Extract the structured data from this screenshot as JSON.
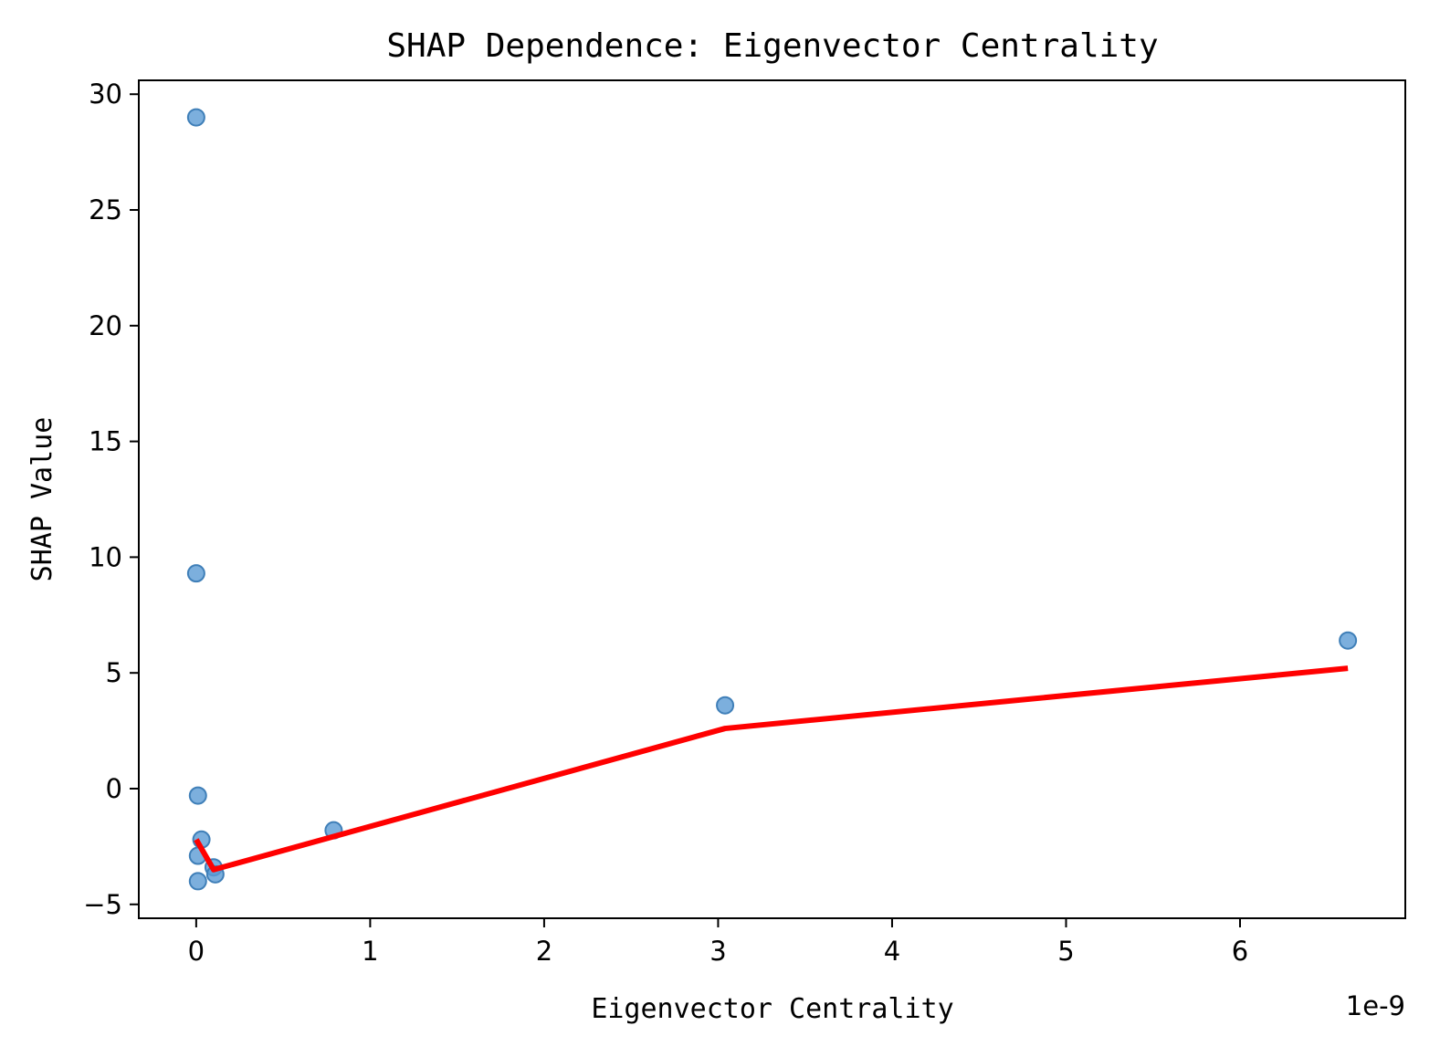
{
  "chart_data": {
    "type": "scatter",
    "title": "SHAP Dependence: Eigenvector Centrality",
    "xlabel": "Eigenvector Centrality",
    "ylabel": "SHAP Value",
    "x_offset_label": "1e-9",
    "xlim": [
      -0.33,
      6.95
    ],
    "ylim": [
      -5.6,
      30.6
    ],
    "x_ticks": [
      0,
      1,
      2,
      3,
      4,
      5,
      6
    ],
    "y_ticks": [
      -5,
      0,
      5,
      10,
      15,
      20,
      25,
      30
    ],
    "x_tick_labels": [
      "0",
      "1",
      "2",
      "3",
      "4",
      "5",
      "6"
    ],
    "y_tick_labels": [
      "−5",
      "0",
      "5",
      "10",
      "15",
      "20",
      "25",
      "30"
    ],
    "points_color": "#5b9bd5",
    "trend_color": "#ff0000",
    "points": [
      {
        "x": 0.0,
        "y": 29.0
      },
      {
        "x": 0.0,
        "y": 9.3
      },
      {
        "x": 0.01,
        "y": -0.3
      },
      {
        "x": 0.03,
        "y": -2.2
      },
      {
        "x": 0.01,
        "y": -2.9
      },
      {
        "x": 0.01,
        "y": -4.0
      },
      {
        "x": 0.1,
        "y": -3.4
      },
      {
        "x": 0.11,
        "y": -3.7
      },
      {
        "x": 0.79,
        "y": -1.8
      },
      {
        "x": 3.04,
        "y": 3.6
      },
      {
        "x": 6.62,
        "y": 6.4
      }
    ],
    "trend_line": [
      {
        "x": 0.0,
        "y": -2.2
      },
      {
        "x": 0.1,
        "y": -3.5
      },
      {
        "x": 3.04,
        "y": 2.6
      },
      {
        "x": 6.62,
        "y": 5.2
      }
    ]
  }
}
